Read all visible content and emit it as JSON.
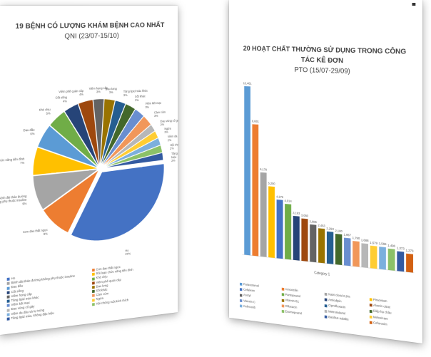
{
  "left_slide": {
    "title": "19 BỆNH CÓ LƯỢNG KHÁM BỆNH CAO NHẤT",
    "subtitle": "QNI (23/07-15/10)"
  },
  "right_slide": {
    "title": "20 HOẠT CHẤT THƯỜNG SỬ DỤNG TRONG CÔNG TÁC KÊ ĐƠN",
    "subtitle": "PTO (15/07-29/09)"
  },
  "chart_data": [
    {
      "type": "pie",
      "title": "19 BỆNH CÓ LƯỢNG KHÁM BỆNH CAO NHẤT QNI (23/07-15/10)",
      "legend_position": "bottom",
      "slices": [
        {
          "name": "Ho",
          "value": 37,
          "label": "Ho\n37%",
          "color": "#4472c4"
        },
        {
          "name": "Cơn đau thắt ngực",
          "value": 9,
          "label": "Cơn đau thắt ngực\n9%",
          "color": "#ed7d31"
        },
        {
          "name": "Bệnh đái tháo đường không phụ thuộc insuline",
          "value": 9,
          "label": "Bệnh đái tháo đường\nkhông phụ thuộc insuline\n9%",
          "color": "#a5a5a5"
        },
        {
          "name": "Rối loạn chức năng tiền đình",
          "value": 7,
          "label": "Rối loạn chức năng tiền đình\n7%",
          "color": "#ffc000"
        },
        {
          "name": "Đau đầu",
          "value": 6,
          "label": "Đau đầu\n6%",
          "color": "#5b9bd5"
        },
        {
          "name": "Khó chịu",
          "value": 5,
          "label": "Khó chịu\n5%",
          "color": "#70ad47"
        },
        {
          "name": "Cốt sống",
          "value": 4,
          "label": "Cốt sống\n4%",
          "color": "#264478"
        },
        {
          "name": "Viêm phế quản cấp",
          "value": 4,
          "label": "Viêm phế quản cấp\n4%",
          "color": "#9e480e"
        },
        {
          "name": "Viêm họng cấp",
          "value": 3,
          "label": "Viêm họng cấp\n3%",
          "color": "#636363"
        },
        {
          "name": "Đau lưng",
          "value": 3,
          "label": "Đau lưng\n3%",
          "color": "#997300"
        },
        {
          "name": "Tăng lipid máu khác",
          "value": 3,
          "label": "Tăng lipid máu khác\n3%",
          "color": "#255e91"
        },
        {
          "name": "Sốt khác",
          "value": 3,
          "label": "Sốt khác\n3%",
          "color": "#43682b"
        },
        {
          "name": "Viêm kết mạc",
          "value": 3,
          "label": "Viêm kết mạc\n3%",
          "color": "#698ed0"
        },
        {
          "name": "Cảm cúm",
          "value": 3,
          "label": "Cảm cúm\n3%",
          "color": "#f1975a"
        },
        {
          "name": "Đau vùng cổ gáy",
          "value": 2,
          "label": "Đau vùng cổ gáy\n2%",
          "color": "#b7b7b7"
        },
        {
          "name": "Ngứa",
          "value": 2,
          "label": "Ngứa\n2%",
          "color": "#ffcd33"
        },
        {
          "name": "Viêm da dầu và tự trùng",
          "value": 2,
          "label": "Viêm da dầu và tự trùng\n2%",
          "color": "#7cafdd"
        },
        {
          "name": "Hội chứng ruột kích thích",
          "value": 2,
          "label": "Hội chứng ruột kích thích\n2%",
          "color": "#8cc168"
        },
        {
          "name": "Tăng lipid máu, không đặc hiệu",
          "value": 2,
          "label": "Tăng lipid máu, không đặc\nhiệu\n2%",
          "color": "#335aa1"
        }
      ],
      "legend": [
        "Ho",
        "Cơn đau thắt ngực",
        "Bệnh đái tháo đường không phụ thuộc insuline",
        "Rối loạn chức năng tiền đình",
        "Đau đầu",
        "Khó chịu",
        "Cốt sống",
        "Viêm phế quản cấp",
        "Viêm họng cấp",
        "Đau lưng",
        "Tăng lipid máu khác",
        "Sốt khác",
        "Viêm kết mạc",
        "Cảm cúm",
        "Đau vùng cổ gáy",
        "Ngứa",
        "Viêm da dầu và tự trùng",
        "Hội chứng ruột kích thích",
        "Tăng lipid máu, không đặc hiệu"
      ]
    },
    {
      "type": "bar",
      "title": "20 HOẠT CHẤT THƯỜNG SỬ DỤNG TRONG CÔNG TÁC KÊ ĐƠN PTO (15/07-29/09)",
      "categories": [
        "Category 1"
      ],
      "legend_position": "bottom",
      "series": [
        {
          "name": "Paracetamol",
          "value": 12461,
          "label": "12,461",
          "color": "#5b9bd5"
        },
        {
          "name": "Amoxicilin",
          "value": 9681,
          "label": "9,681",
          "color": "#ed7d31"
        },
        {
          "name": "Natri clorid 0,9%",
          "value": 6178,
          "label": "6,178",
          "color": "#a5a5a5"
        },
        {
          "name": "Piracetam",
          "value": 5200,
          "label": "5,200",
          "color": "#ffc000"
        },
        {
          "name": "Cefalexin",
          "value": 4276,
          "label": "4,276",
          "color": "#4472c4"
        },
        {
          "name": "Pantoprazol",
          "value": 4014,
          "label": "4,014",
          "color": "#70ad47"
        },
        {
          "name": "Amlodipin",
          "value": 3193,
          "label": "3,193",
          "color": "#264478"
        },
        {
          "name": "Alverin citrat",
          "value": 3060,
          "label": "3,060",
          "color": "#9e480e"
        },
        {
          "name": "Acetyl",
          "value": 2685,
          "label": "2,685",
          "color": "#636363"
        },
        {
          "name": "Vitamin B1",
          "value": 2463,
          "label": "2,463",
          "color": "#997300"
        },
        {
          "name": "Ciprofloxacin",
          "value": 2293,
          "label": "2,293",
          "color": "#255e91"
        },
        {
          "name": "Diệp hạ châu",
          "value": 2180,
          "label": "2,180",
          "color": "#43682b"
        },
        {
          "name": "Vitamin C",
          "value": 1957,
          "label": "1,957",
          "color": "#698ed0"
        },
        {
          "name": "Ofloxacin",
          "value": 1790,
          "label": "1,790",
          "color": "#f1975a"
        },
        {
          "name": "Metronidazol",
          "value": 1688,
          "label": "1,688",
          "color": "#b7b7b7"
        },
        {
          "name": "Meloxicam",
          "value": 1579,
          "label": "1,579",
          "color": "#ffcd33"
        },
        {
          "name": "Celecoxib",
          "value": 1565,
          "label": "1,565",
          "color": "#7cafdd"
        },
        {
          "name": "Esomeprazol",
          "value": 1496,
          "label": "1,496",
          "color": "#8cc168"
        },
        {
          "name": "Bacillus subtilis",
          "value": 1373,
          "label": "1,373",
          "color": "#335aa1"
        },
        {
          "name": "Cefuroxim",
          "value": 1273,
          "label": "1,273",
          "color": "#d26012"
        }
      ]
    }
  ]
}
